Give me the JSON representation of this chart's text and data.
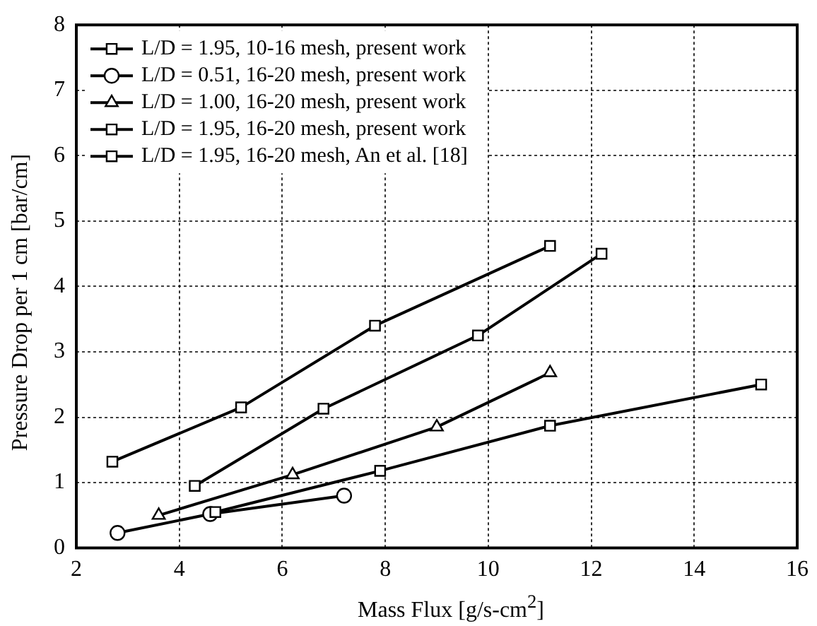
{
  "chart_data": {
    "type": "line",
    "xlabel": "Mass Flux [g/s-cm$^{2}$]",
    "ylabel": "Pressure Drop per 1 cm [bar/cm]",
    "xlim": [
      2,
      16
    ],
    "xticks": [
      2,
      4,
      6,
      8,
      10,
      12,
      14,
      16
    ],
    "ylim": [
      0,
      8
    ],
    "yticks": [
      0,
      1,
      2,
      3,
      4,
      5,
      6,
      7,
      8
    ],
    "grid": true,
    "legend": "top left",
    "line_style": "solid",
    "series": [
      {
        "name": "L/D = 1.95, 10-16 mesh, present work",
        "color": "#000000",
        "marker": "square",
        "x": [
          4.7,
          7.9,
          11.2,
          15.3
        ],
        "values": [
          0.55,
          1.18,
          1.87,
          2.5
        ]
      },
      {
        "name": "L/D = 0.51, 16-20 mesh, present work",
        "color": "#000000",
        "marker": "circle",
        "x": [
          2.8,
          4.6,
          7.2
        ],
        "values": [
          0.23,
          0.52,
          0.8
        ]
      },
      {
        "name": "L/D = 1.00, 16-20 mesh, present work",
        "color": "#000000",
        "marker": "triangle",
        "x": [
          3.6,
          6.2,
          9.0,
          11.2
        ],
        "values": [
          0.5,
          1.12,
          1.85,
          2.68
        ]
      },
      {
        "name": "L/D = 1.95, 16-20 mesh, present work",
        "color": "#000000",
        "marker": "square",
        "x": [
          4.3,
          6.8,
          9.8,
          12.2
        ],
        "values": [
          0.95,
          2.13,
          3.25,
          4.5
        ]
      },
      {
        "name": "L/D = 1.95, 16-20 mesh, An et al. [18]",
        "color": "#000000",
        "marker": "square",
        "x": [
          2.7,
          5.2,
          7.8,
          11.2
        ],
        "values": [
          1.32,
          2.15,
          3.4,
          4.62
        ]
      }
    ]
  }
}
